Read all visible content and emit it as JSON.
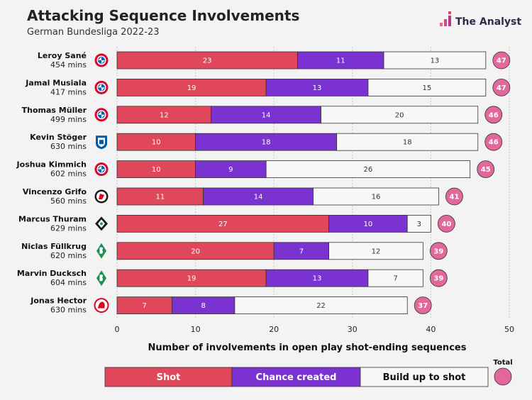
{
  "header": {
    "title": "Attacking Sequence Involvements",
    "subtitle": "German Bundesliga 2022-23",
    "brand": "The Analyst"
  },
  "colors": {
    "shot": "#e0475a",
    "chance": "#7a33d1",
    "buildup": "#f7f7f7",
    "total_badge": "#e2679a",
    "background": "#f3f3f3"
  },
  "chart_data": {
    "type": "bar",
    "orientation": "horizontal",
    "stacked": true,
    "xlabel": "Number of involvements in open play shot-ending sequences",
    "xlim": [
      0,
      50
    ],
    "xticks": [
      0,
      10,
      20,
      30,
      40,
      50
    ],
    "grid": true,
    "legend_position": "bottom",
    "total_label": "Total",
    "categories": [
      "Leroy Sané",
      "Jamal Musiala",
      "Thomas Müller",
      "Kevin Stöger",
      "Joshua Kimmich",
      "Vincenzo Grifo",
      "Marcus Thuram",
      "Niclas Füllkrug",
      "Marvin Ducksch",
      "Jonas Hector"
    ],
    "minutes": [
      "454 mins",
      "417 mins",
      "499 mins",
      "630 mins",
      "602 mins",
      "560 mins",
      "629 mins",
      "620 mins",
      "604 mins",
      "630 mins"
    ],
    "clubs": [
      "bayern-icon",
      "bayern-icon",
      "bayern-icon",
      "bochum-icon",
      "bayern-icon",
      "freiburg-icon",
      "gladbach-icon",
      "bremen-icon",
      "bremen-icon",
      "koln-icon"
    ],
    "series": [
      {
        "name": "Shot",
        "values": [
          23,
          19,
          12,
          10,
          10,
          11,
          27,
          20,
          19,
          7
        ]
      },
      {
        "name": "Chance created",
        "values": [
          11,
          13,
          14,
          18,
          9,
          14,
          10,
          7,
          13,
          8
        ]
      },
      {
        "name": "Build up to shot",
        "values": [
          13,
          15,
          20,
          18,
          26,
          16,
          3,
          12,
          7,
          22
        ]
      }
    ],
    "totals": [
      47,
      47,
      46,
      46,
      45,
      41,
      40,
      39,
      39,
      37
    ]
  }
}
